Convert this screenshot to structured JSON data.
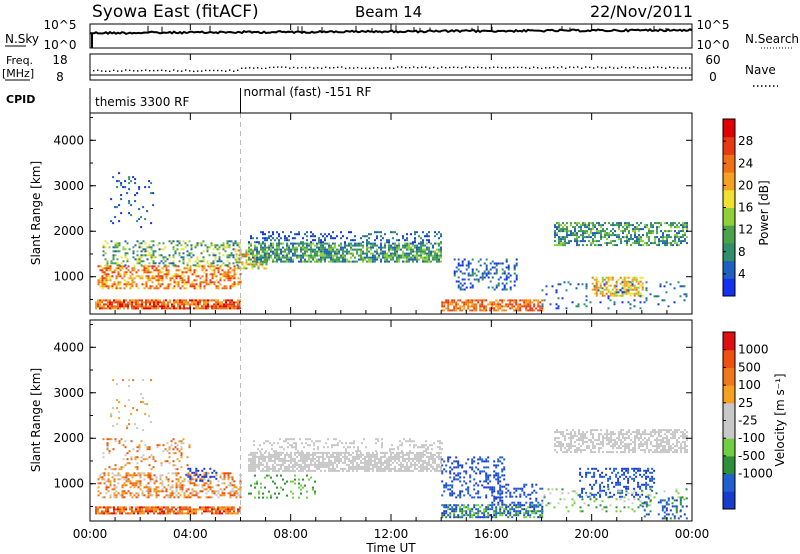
{
  "header": {
    "station": "Syowa East (fitACF)",
    "beam": "Beam 14",
    "date": "22/Nov/2011"
  },
  "sky_panel": {
    "left_label": "N.Sky",
    "left_ticks": [
      "10^5",
      "10^0"
    ],
    "right_ticks": [
      "10^5",
      "10^0"
    ],
    "right_label": "N.Search"
  },
  "freq_panel": {
    "left_label_line1": "Freq.",
    "left_label_line2": "[MHz]",
    "left_ticks": [
      "18",
      "8"
    ],
    "right_ticks": [
      "60",
      "0"
    ],
    "right_label": "Nave"
  },
  "cpid": {
    "label": "CPID",
    "segments": [
      {
        "text": "themis 3300 RF",
        "start_hour": 0
      },
      {
        "text": "normal (fast) -151 RF",
        "start_hour": 6
      }
    ]
  },
  "x_axis": {
    "label": "Time UT",
    "ticks": [
      "00:00",
      "04:00",
      "08:00",
      "12:00",
      "16:00",
      "20:00",
      "00:00"
    ]
  },
  "chart_data": [
    {
      "type": "heatmap",
      "panel": "power",
      "xlabel": "Time UT",
      "ylabel": "Slant Range [km]",
      "xlim": [
        0,
        24
      ],
      "ylim": [
        180,
        4600
      ],
      "y_ticks": [
        "1000",
        "2000",
        "3000",
        "4000"
      ],
      "colorbar": {
        "label": "Power [dB]",
        "ticks": [
          "4",
          "8",
          "12",
          "16",
          "20",
          "24",
          "28"
        ],
        "colors": [
          "#1430f0",
          "#1f5fbf",
          "#2f8f6a",
          "#4aa24a",
          "#8fcf3a",
          "#f0e030",
          "#f5a020",
          "#f07018",
          "#e83a12",
          "#e00000"
        ]
      }
    },
    {
      "type": "heatmap",
      "panel": "velocity",
      "xlabel": "Time UT",
      "ylabel": "Slant Range [km]",
      "xlim": [
        0,
        24
      ],
      "ylim": [
        180,
        4600
      ],
      "y_ticks": [
        "1000",
        "2000",
        "3000",
        "4000"
      ],
      "colorbar": {
        "label": "Velocity [m s⁻¹]",
        "ticks": [
          "1000",
          "500",
          "100",
          "25",
          "-25",
          "-100",
          "-500",
          "-1000"
        ],
        "colors": [
          "#1a3ccc",
          "#2060d0",
          "#2f8e3a",
          "#6fcf40",
          "#c8c8c8",
          "#c8c8c8",
          "#f5a020",
          "#f07818",
          "#ee5010",
          "#e01010"
        ]
      }
    }
  ]
}
